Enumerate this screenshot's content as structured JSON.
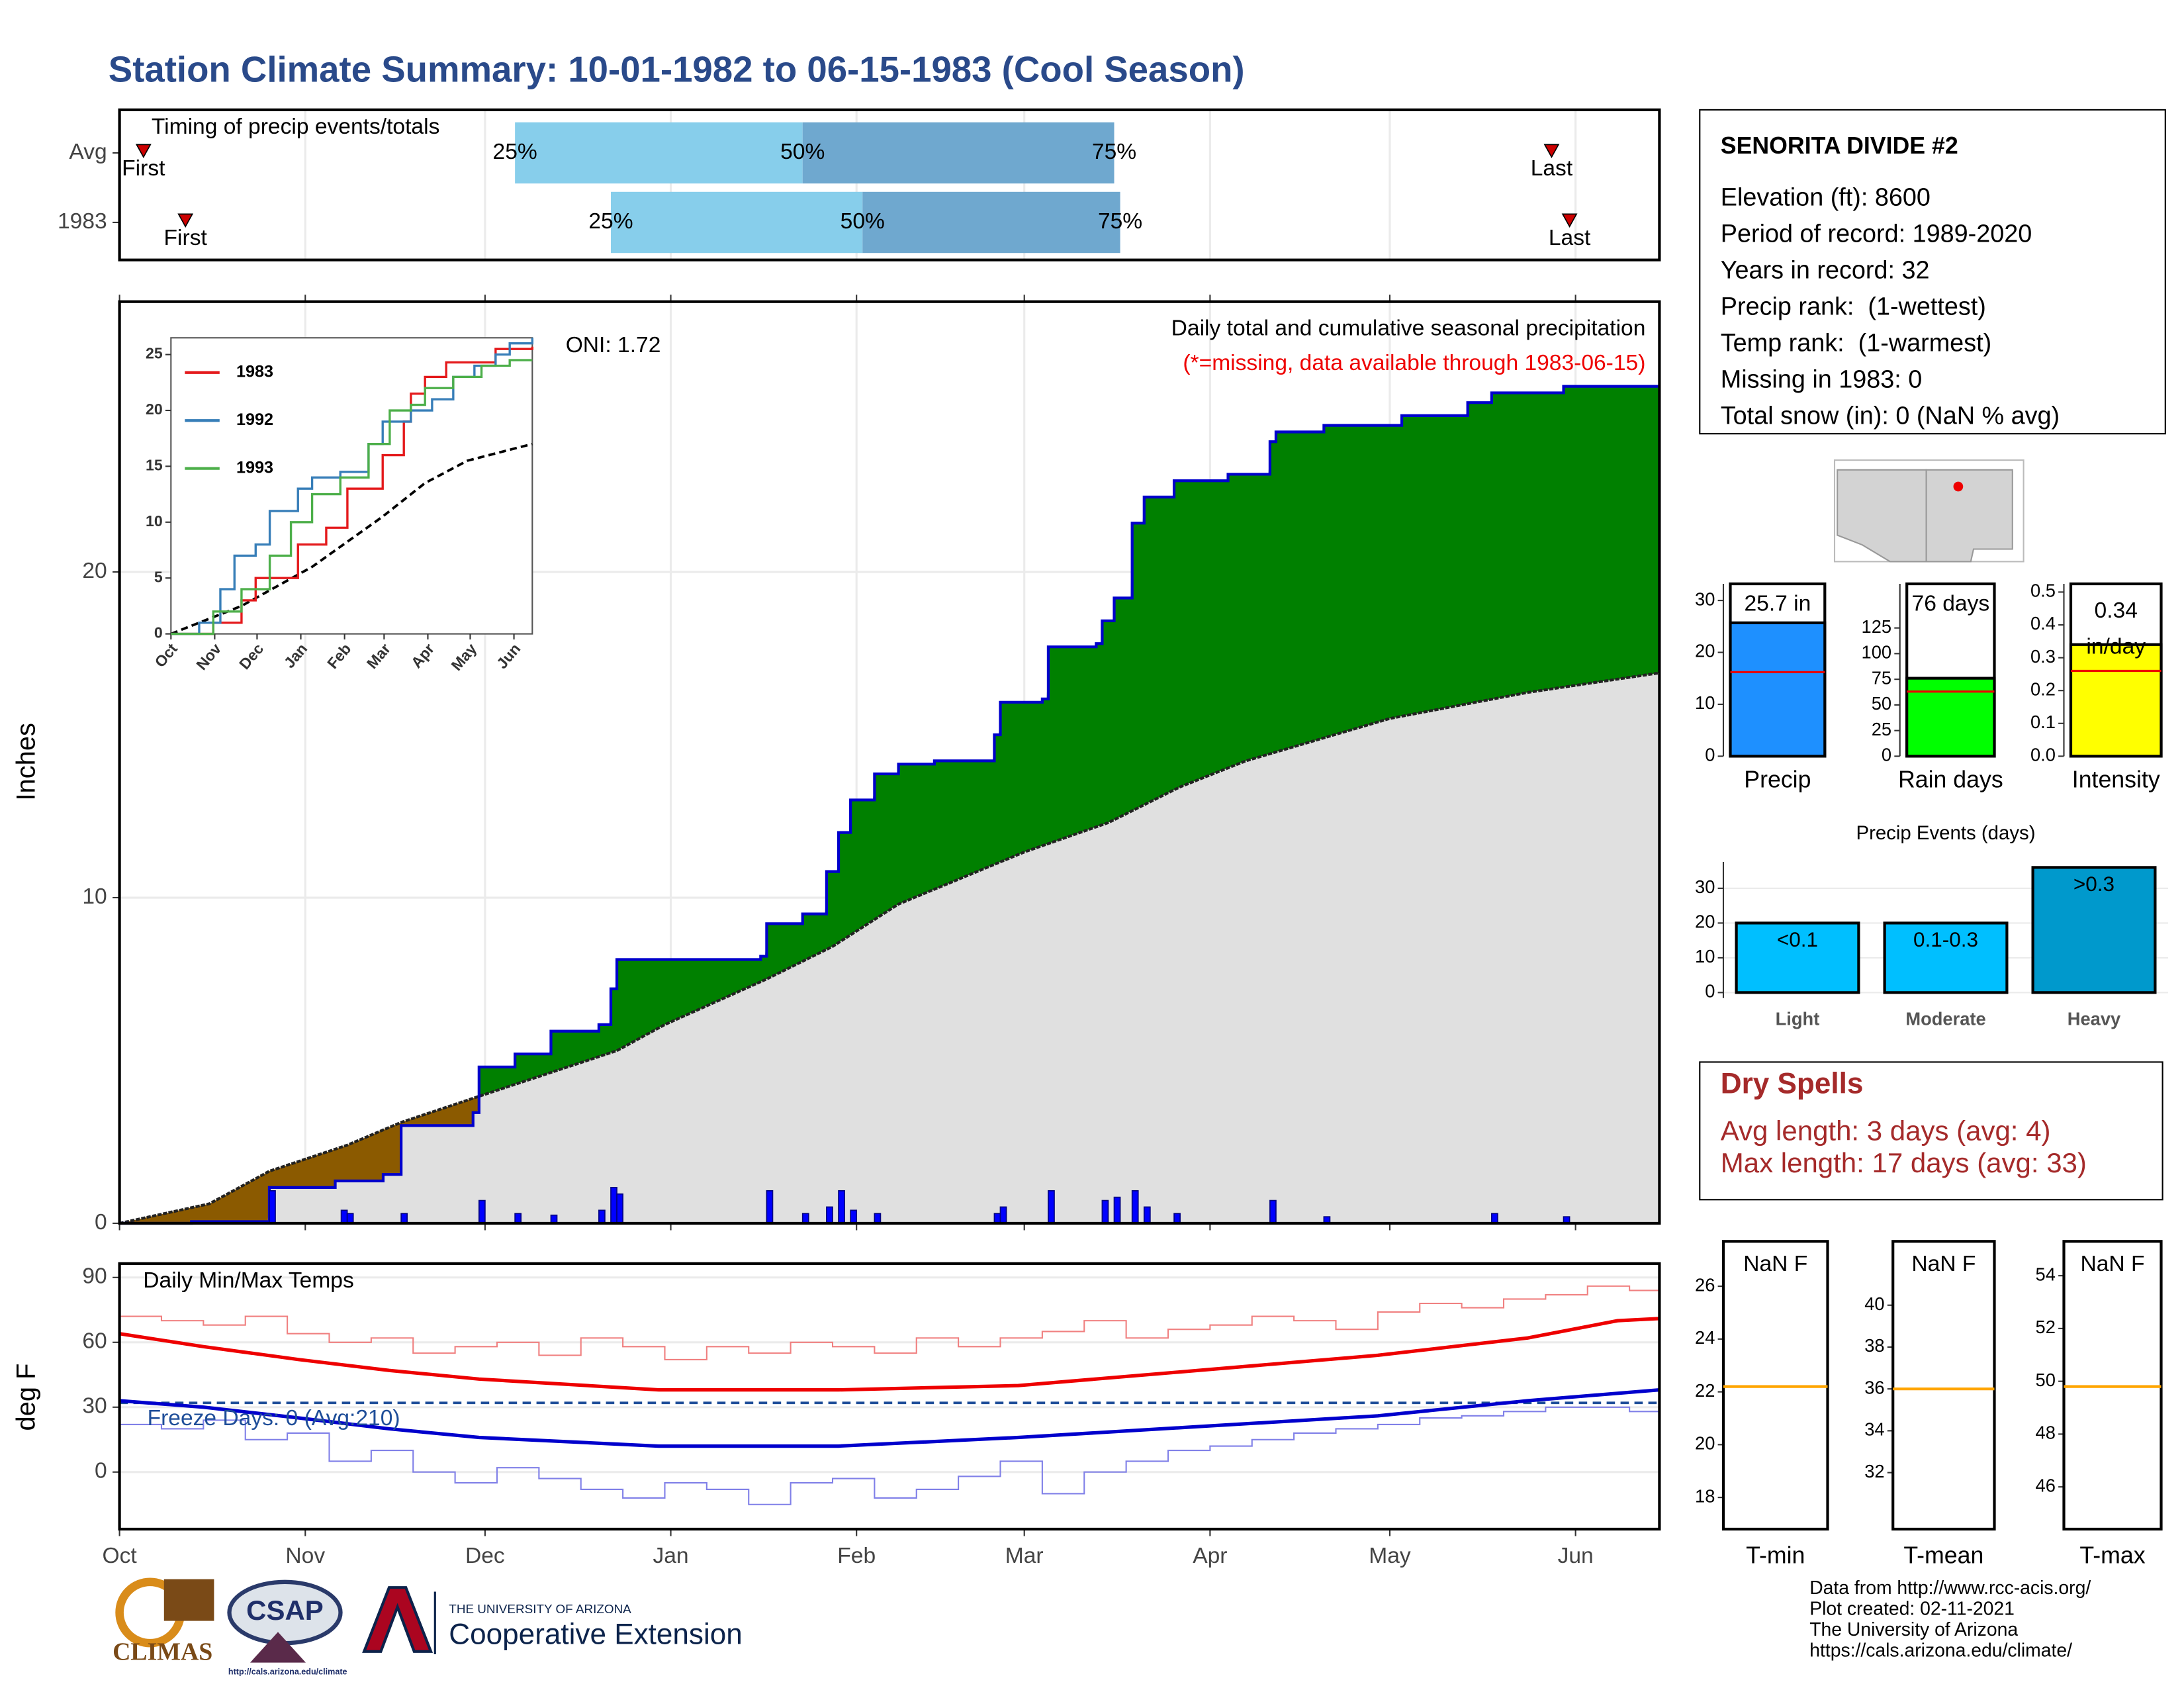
{
  "title": "Station Climate Summary: 10-01-1982 to 06-15-1983 (Cool Season)",
  "chart_data": [
    {
      "type": "timeline",
      "title": "Timing of precip events/totals",
      "xlim": [
        0,
        257
      ],
      "labels": {
        "first": "First",
        "last": "Last",
        "p25": "25%",
        "p50": "50%",
        "p75": "75%"
      },
      "colors": [
        "#87ceeb",
        "#6fa8cf"
      ],
      "marker_color": "#cc0000",
      "rows": [
        {
          "name": "Avg",
          "first": 4,
          "p25": 66,
          "p50": 114,
          "p75": 166,
          "last": 239
        },
        {
          "name": "1983",
          "first": 11,
          "p25": 82,
          "p50": 124,
          "p75": 167,
          "last": 242
        }
      ]
    },
    {
      "type": "area",
      "y_label": "Inches",
      "oni": "ONI: 1.72",
      "subtitle": "Daily total and cumulative seasonal precipitation",
      "note": "(*=missing, data available through 1983-06-15)",
      "xlim": [
        0,
        257
      ],
      "ylim": [
        0,
        28.3
      ],
      "yticks": [
        0,
        10,
        20
      ],
      "grid": true,
      "colors": {
        "above": "#008000",
        "below": "#8b5a00",
        "base": "#e0e0e0",
        "line": "#0000cc",
        "average_line": "#222222"
      },
      "cumulative": {
        "x": [
          0,
          12,
          25,
          36,
          44,
          47,
          59,
          60,
          66,
          72,
          80,
          82,
          83,
          107,
          108,
          114,
          118,
          120,
          122,
          126,
          130,
          136,
          146,
          147,
          154,
          155,
          163,
          164,
          166,
          169,
          171,
          176,
          185,
          192,
          193,
          201,
          214,
          225,
          229,
          241,
          257
        ],
        "values": [
          0,
          0.05,
          1.1,
          1.3,
          1.5,
          3.0,
          3.4,
          4.8,
          5.2,
          5.9,
          6.1,
          7.2,
          8.1,
          8.2,
          9.2,
          9.5,
          10.8,
          12.0,
          13.0,
          13.8,
          14.1,
          14.2,
          15.0,
          16.0,
          16.1,
          17.7,
          17.8,
          18.5,
          19.2,
          21.5,
          22.3,
          22.8,
          23.0,
          24.0,
          24.3,
          24.5,
          24.8,
          25.2,
          25.5,
          25.7,
          25.7
        ]
      },
      "average": {
        "x": [
          0,
          15,
          25,
          38,
          47,
          60,
          83,
          91,
          108,
          119,
          130,
          151,
          165,
          177,
          188,
          212,
          235,
          257
        ],
        "values": [
          0,
          0.6,
          1.6,
          2.4,
          3.1,
          3.9,
          5.3,
          6.1,
          7.5,
          8.5,
          9.8,
          11.4,
          12.3,
          13.4,
          14.2,
          15.5,
          16.3,
          16.9
        ]
      },
      "daily": {
        "color": "#0000ff",
        "x": [
          25,
          37,
          38,
          47,
          60,
          66,
          72,
          80,
          82,
          83,
          108,
          114,
          118,
          120,
          122,
          126,
          146,
          147,
          155,
          164,
          166,
          169,
          171,
          176,
          192,
          201,
          229,
          241
        ],
        "values": [
          1.0,
          0.4,
          0.3,
          0.3,
          0.7,
          0.3,
          0.25,
          0.4,
          1.1,
          0.9,
          1.0,
          0.3,
          0.5,
          1.0,
          0.4,
          0.3,
          0.3,
          0.5,
          1.0,
          0.7,
          0.8,
          1.0,
          0.5,
          0.3,
          0.7,
          0.2,
          0.3,
          0.2
        ]
      }
    },
    {
      "type": "line",
      "xlim": [
        0,
        256
      ],
      "ylim": [
        0,
        26.5
      ],
      "yticks": [
        0,
        5,
        10,
        15,
        20,
        25
      ],
      "xticks": [
        {
          "value": 0,
          "label": "Oct"
        },
        {
          "value": 31,
          "label": "Nov"
        },
        {
          "value": 61,
          "label": "Dec"
        },
        {
          "value": 92,
          "label": "Jan"
        },
        {
          "value": 123,
          "label": "Feb"
        },
        {
          "value": 151,
          "label": "Mar"
        },
        {
          "value": 182,
          "label": "Apr"
        },
        {
          "value": 212,
          "label": "May"
        },
        {
          "value": 243,
          "label": "Jun"
        }
      ],
      "series": [
        {
          "name": "1983",
          "color": "#e41a1c",
          "x": [
            0,
            30,
            50,
            60,
            90,
            110,
            125,
            150,
            165,
            170,
            180,
            195,
            230,
            256
          ],
          "values": [
            0,
            1,
            3,
            5,
            8,
            9.5,
            13,
            16,
            19,
            21.5,
            23,
            24.3,
            25.5,
            25.7
          ]
        },
        {
          "name": "1992",
          "color": "#377eb8",
          "x": [
            0,
            20,
            35,
            45,
            60,
            70,
            90,
            100,
            120,
            140,
            150,
            170,
            185,
            200,
            215,
            230,
            240,
            256
          ],
          "values": [
            0,
            1,
            4,
            7,
            8,
            11,
            13,
            14,
            14.5,
            17,
            19,
            20,
            21,
            23,
            24,
            25,
            26,
            26.5
          ]
        },
        {
          "name": "1993",
          "color": "#4daf4a",
          "x": [
            0,
            30,
            50,
            70,
            85,
            100,
            120,
            140,
            155,
            170,
            180,
            200,
            220,
            240,
            256
          ],
          "values": [
            0,
            2,
            4,
            7,
            10,
            12.5,
            14,
            17,
            20,
            20.5,
            22,
            23,
            24,
            24.5,
            24.5
          ]
        }
      ],
      "average": {
        "color": "#000000",
        "x": [
          0,
          50,
          100,
          150,
          180,
          210,
          256
        ],
        "values": [
          0,
          2.5,
          6,
          10.5,
          13.5,
          15.5,
          17
        ]
      }
    },
    {
      "type": "line",
      "title": "Daily Min/Max Temps",
      "y_label": "deg F",
      "xlim": [
        0,
        257
      ],
      "ylim": [
        -26.4,
        96.4
      ],
      "yticks": [
        0,
        30,
        60,
        90
      ],
      "grid": true,
      "xticks": [
        {
          "value": 0,
          "label": "Oct"
        },
        {
          "value": 31,
          "label": "Nov"
        },
        {
          "value": 61,
          "label": "Dec"
        },
        {
          "value": 92,
          "label": "Jan"
        },
        {
          "value": 123,
          "label": "Feb"
        },
        {
          "value": 151,
          "label": "Mar"
        },
        {
          "value": 182,
          "label": "Apr"
        },
        {
          "value": 212,
          "label": "May"
        },
        {
          "value": 243,
          "label": "Jun"
        }
      ],
      "freeze": {
        "value": 32,
        "label": "Freeze Days: 0 (Avg:210)",
        "color": "#1f4e99"
      },
      "series": [
        {
          "color": "#f08080",
          "width": 1,
          "x": [
            0,
            7,
            14,
            21,
            28,
            35,
            42,
            49,
            56,
            63,
            70,
            77,
            84,
            91,
            98,
            105,
            112,
            119,
            126,
            133,
            140,
            147,
            154,
            161,
            168,
            175,
            182,
            189,
            196,
            203,
            210,
            217,
            224,
            231,
            238,
            245,
            252,
            257
          ],
          "values": [
            72,
            70,
            68,
            72,
            64,
            60,
            62,
            55,
            58,
            60,
            54,
            62,
            58,
            52,
            58,
            55,
            60,
            58,
            55,
            62,
            58,
            62,
            65,
            70,
            62,
            66,
            68,
            72,
            70,
            66,
            74,
            78,
            76,
            80,
            82,
            86,
            84,
            86
          ]
        },
        {
          "color": "#8080e8",
          "width": 1,
          "x": [
            0,
            7,
            14,
            21,
            28,
            35,
            42,
            49,
            56,
            63,
            70,
            77,
            84,
            91,
            98,
            105,
            112,
            119,
            126,
            133,
            140,
            147,
            154,
            161,
            168,
            175,
            182,
            189,
            196,
            203,
            210,
            217,
            224,
            231,
            238,
            245,
            252,
            257
          ],
          "values": [
            22,
            20,
            24,
            15,
            18,
            5,
            10,
            0,
            -5,
            2,
            -3,
            -8,
            -12,
            -5,
            -8,
            -15,
            -5,
            -3,
            -12,
            -8,
            -2,
            5,
            -10,
            0,
            5,
            10,
            12,
            15,
            18,
            20,
            22,
            25,
            26,
            28,
            30,
            30,
            28,
            31
          ]
        },
        {
          "color": "#ee0000",
          "width": 2.5,
          "x": [
            0,
            14,
            30,
            45,
            60,
            90,
            120,
            150,
            180,
            210,
            235,
            250,
            257
          ],
          "values": [
            64,
            58,
            52,
            47,
            43,
            38,
            38,
            40,
            47,
            54,
            62,
            70,
            71
          ]
        },
        {
          "color": "#0000cc",
          "width": 2.5,
          "x": [
            0,
            14,
            30,
            45,
            60,
            90,
            120,
            150,
            180,
            210,
            235,
            257
          ],
          "values": [
            33,
            30,
            25,
            20,
            16,
            12,
            12,
            16,
            21,
            26,
            33,
            38
          ]
        }
      ]
    },
    {
      "type": "bar",
      "categories": [
        "Precip"
      ],
      "values": [
        25.7
      ],
      "value_labels": [
        "25.7 in"
      ],
      "average": 16.2,
      "color": "#1e90ff",
      "average_color": "#ee0000",
      "ylim": [
        0,
        33.2
      ],
      "yticks": [
        0,
        10,
        20,
        30
      ]
    },
    {
      "type": "bar",
      "categories": [
        "Rain days"
      ],
      "values": [
        76
      ],
      "value_labels": [
        "76 days"
      ],
      "average": 63,
      "color": "#00ff00",
      "average_color": "#ee0000",
      "ylim": [
        0,
        168
      ],
      "yticks": [
        0,
        25,
        50,
        75,
        100,
        125
      ]
    },
    {
      "type": "bar",
      "categories": [
        "Intensity"
      ],
      "values": [
        0.34
      ],
      "value_labels": [
        "0.34"
      ],
      "unit": "in/day",
      "average": 0.26,
      "color": "#ffff00",
      "average_color": "#ee0000",
      "ylim": [
        0,
        0.525
      ],
      "yticks": [
        {
          "value": 0,
          "label": "0.0"
        },
        0.1,
        0.2,
        0.3,
        0.4,
        0.5
      ]
    },
    {
      "type": "bar",
      "title": "Precip Events (days)",
      "categories": [
        "Light",
        "Moderate",
        "Heavy"
      ],
      "values": [
        20,
        20,
        36
      ],
      "thresholds": [
        "<0.1",
        "0.1-0.3",
        ">0.3"
      ],
      "colors": [
        "#00bfff",
        "#00bfff",
        "#0099cc"
      ],
      "ylim": [
        0,
        37.6
      ],
      "yticks": [
        0,
        10,
        20,
        30
      ],
      "grid": true
    },
    {
      "type": "range",
      "categories": [
        "T-min"
      ],
      "values": [
        null
      ],
      "value_labels": [
        "NaN F"
      ],
      "average": 22.2,
      "color": "#ffa500",
      "ylim": [
        16.8,
        27.7
      ],
      "yticks": [
        18,
        20,
        22,
        24,
        26
      ]
    },
    {
      "type": "range",
      "categories": [
        "T-mean"
      ],
      "values": [
        null
      ],
      "value_labels": [
        "NaN F"
      ],
      "average": 36,
      "color": "#ffa500",
      "ylim": [
        29.3,
        43.05
      ],
      "yticks": [
        32,
        34,
        36,
        38,
        40
      ]
    },
    {
      "type": "range",
      "categories": [
        "T-max"
      ],
      "values": [
        null
      ],
      "value_labels": [
        "NaN F"
      ],
      "average": 49.8,
      "color": "#ffa500",
      "ylim": [
        44.4,
        55.3
      ],
      "yticks": [
        46,
        48,
        50,
        52,
        54
      ]
    }
  ],
  "station": {
    "name": "SENORITA DIVIDE #2",
    "lines": [
      "Elevation (ft): 8600",
      "Period of record: 1989-2020",
      "Years in record: 32",
      "Precip rank:  (1-wettest)",
      "Temp rank:  (1-warmest)",
      "Missing in 1983: 0",
      "Total snow (in): 0 (NaN % avg)"
    ]
  },
  "dry_spells": {
    "title": "Dry Spells",
    "lines": [
      "Avg length: 3 days (avg: 4)",
      "Max length: 17 days (avg: 33)"
    ]
  },
  "logos": {
    "climas": "CLIMAS",
    "csap": "CSAP",
    "csap_url": "http://cals.arizona.edu/climate",
    "university": "THE UNIVERSITY OF ARIZONA",
    "extension": "Cooperative Extension"
  },
  "credits": [
    "Data from http://www.rcc-acis.org/",
    "Plot created: 02-11-2021",
    "The University of Arizona",
    "https://cals.arizona.edu/climate/"
  ]
}
